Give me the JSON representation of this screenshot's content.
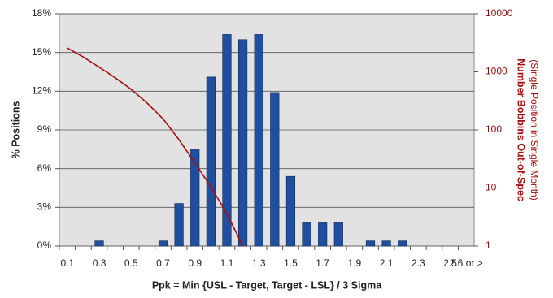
{
  "chart_data": {
    "type": "bar",
    "x_label": "Ppk = Min {USL - Target, Target - LSL} / 3 Sigma",
    "y_label": "% Positions",
    "y2_label": "Number Bobbins Out-of-Spec",
    "y2_sublabel": "(Single Position in Single Month)",
    "categories": [
      "0.1",
      null,
      "0.3",
      null,
      "0.5",
      null,
      "0.7",
      null,
      "0.9",
      null,
      "1.1",
      null,
      "1.3",
      null,
      "1.5",
      null,
      "1.7",
      null,
      "1.9",
      null,
      "2.1",
      null,
      "2.3",
      null,
      "2.5",
      "2.6 or >"
    ],
    "series": [
      {
        "type": "bar",
        "color": "#1f4f9e",
        "values": [
          0,
          0,
          0.4,
          0,
          0,
          0,
          0.4,
          3.3,
          7.5,
          13.1,
          16.4,
          16.0,
          16.4,
          11.9,
          5.4,
          1.8,
          1.8,
          1.8,
          0,
          0.4,
          0.4,
          0.4,
          0,
          0,
          0,
          0
        ]
      },
      {
        "type": "line",
        "axis": "y2",
        "color": "#a50f0f",
        "values": [
          2570,
          1800,
          1200,
          790,
          500,
          290,
          155,
          68,
          27,
          10.5,
          3.6,
          1,
          null,
          null,
          null,
          null,
          null,
          null,
          null,
          null,
          null,
          null,
          null,
          null,
          null,
          null
        ]
      }
    ],
    "ylim": [
      0,
      18
    ],
    "yticks": [
      {
        "value": 0,
        "label": "0%"
      },
      {
        "value": 3,
        "label": "3%"
      },
      {
        "value": 6,
        "label": "6%"
      },
      {
        "value": 9,
        "label": "9%"
      },
      {
        "value": 12,
        "label": "12%"
      },
      {
        "value": 15,
        "label": "15%"
      },
      {
        "value": 18,
        "label": "18%"
      }
    ],
    "y2lim": [
      1,
      10000
    ],
    "y2ticks": [
      1,
      10,
      100,
      1000,
      10000
    ],
    "y2log": true,
    "grid": true,
    "background": "#e2e2e2"
  }
}
